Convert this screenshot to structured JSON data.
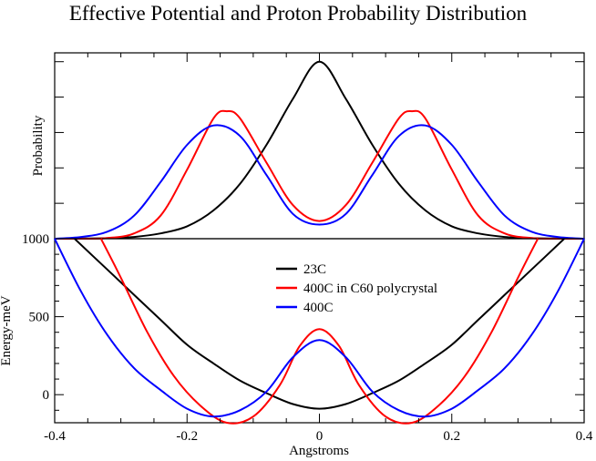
{
  "chart_data": {
    "type": "line",
    "title": "Effective Potential and Proton Probability Distribution",
    "xlabel": "Angstroms",
    "xlim": [
      -0.4,
      0.4
    ],
    "x_ticks": [
      -0.4,
      -0.2,
      0,
      0.2,
      0.4
    ],
    "x_tick_labels": [
      "-0.4",
      "-0.2",
      "0",
      "0.2",
      "0.4"
    ],
    "colors": {
      "23C": "#000000",
      "400C in C60 polycrystal": "#ff0000",
      "400C": "#0000ff"
    },
    "legend": {
      "placement": "lower-panel-top-center",
      "entries": [
        {
          "label": "23C",
          "color": "#000000"
        },
        {
          "label": "400C in C60 polycrystal",
          "color": "#ff0000"
        },
        {
          "label": "400C",
          "color": "#0000ff"
        }
      ]
    },
    "panels": [
      {
        "id": "probability",
        "ylabel": "Probability",
        "ylim": [
          0,
          1.05
        ],
        "y_tick_labels_shown": false,
        "series": [
          {
            "name": "23C",
            "x": [
              -0.4,
              -0.36,
              -0.32,
              -0.28,
              -0.24,
              -0.2,
              -0.16,
              -0.12,
              -0.08,
              -0.04,
              0,
              0.04,
              0.08,
              0.12,
              0.16,
              0.2,
              0.24,
              0.28,
              0.32,
              0.36,
              0.4
            ],
            "y": [
              0,
              0.001,
              0.003,
              0.01,
              0.03,
              0.07,
              0.16,
              0.31,
              0.53,
              0.79,
              1.0,
              0.79,
              0.53,
              0.31,
              0.16,
              0.07,
              0.03,
              0.01,
              0.003,
              0.001,
              0
            ]
          },
          {
            "name": "400C in C60 polycrystal",
            "x": [
              -0.4,
              -0.36,
              -0.32,
              -0.28,
              -0.24,
              -0.2,
              -0.16,
              -0.14,
              -0.12,
              -0.08,
              -0.04,
              0,
              0.04,
              0.08,
              0.12,
              0.14,
              0.16,
              0.2,
              0.24,
              0.28,
              0.32,
              0.36,
              0.4
            ],
            "y": [
              0,
              0,
              0.004,
              0.03,
              0.13,
              0.39,
              0.68,
              0.72,
              0.68,
              0.43,
              0.19,
              0.1,
              0.19,
              0.43,
              0.68,
              0.72,
              0.68,
              0.39,
              0.13,
              0.03,
              0.004,
              0,
              0
            ]
          },
          {
            "name": "400C",
            "x": [
              -0.4,
              -0.36,
              -0.32,
              -0.28,
              -0.24,
              -0.2,
              -0.16,
              -0.12,
              -0.08,
              -0.04,
              0,
              0.04,
              0.08,
              0.12,
              0.16,
              0.2,
              0.24,
              0.28,
              0.32,
              0.36,
              0.4
            ],
            "y": [
              0,
              0.01,
              0.04,
              0.13,
              0.32,
              0.53,
              0.64,
              0.58,
              0.36,
              0.14,
              0.08,
              0.14,
              0.36,
              0.58,
              0.64,
              0.53,
              0.32,
              0.13,
              0.04,
              0.01,
              0
            ]
          }
        ]
      },
      {
        "id": "energy",
        "ylabel": "Energy-meV",
        "ylim": [
          -180,
          1000
        ],
        "y_ticks": [
          0,
          500,
          1000
        ],
        "y_tick_labels": [
          "0",
          "500",
          "1000"
        ],
        "series": [
          {
            "name": "23C",
            "x": [
              -0.37,
              -0.32,
              -0.28,
              -0.24,
              -0.2,
              -0.16,
              -0.12,
              -0.08,
              -0.04,
              0,
              0.04,
              0.08,
              0.12,
              0.16,
              0.2,
              0.24,
              0.28,
              0.32,
              0.37
            ],
            "y": [
              1000,
              800,
              640,
              480,
              320,
              200,
              90,
              10,
              -60,
              -90,
              -60,
              10,
              90,
              200,
              320,
              480,
              640,
              800,
              1000
            ]
          },
          {
            "name": "400C in C60 polycrystal",
            "x": [
              -0.33,
              -0.3,
              -0.26,
              -0.22,
              -0.18,
              -0.14,
              -0.1,
              -0.06,
              -0.03,
              0,
              0.03,
              0.06,
              0.1,
              0.14,
              0.18,
              0.22,
              0.26,
              0.3,
              0.33
            ],
            "y": [
              1000,
              750,
              400,
              120,
              -70,
              -180,
              -140,
              60,
              310,
              420,
              310,
              60,
              -140,
              -180,
              -70,
              120,
              400,
              750,
              1000
            ]
          },
          {
            "name": "400C",
            "x": [
              -0.4,
              -0.36,
              -0.32,
              -0.28,
              -0.24,
              -0.2,
              -0.16,
              -0.12,
              -0.08,
              -0.04,
              0,
              0.04,
              0.08,
              0.12,
              0.16,
              0.2,
              0.24,
              0.28,
              0.32,
              0.36,
              0.4
            ],
            "y": [
              1000,
              660,
              380,
              170,
              30,
              -90,
              -140,
              -100,
              20,
              240,
              350,
              240,
              20,
              -100,
              -140,
              -90,
              30,
              170,
              380,
              660,
              1000
            ]
          }
        ]
      }
    ]
  }
}
